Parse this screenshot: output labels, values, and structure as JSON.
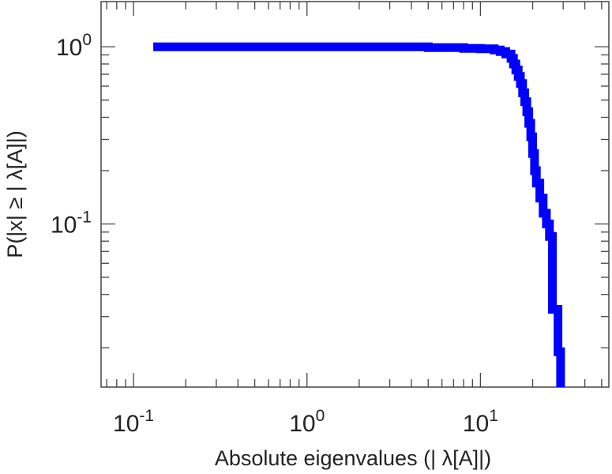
{
  "chart_data": {
    "type": "line",
    "title": "",
    "xlabel": "Absolute eigenvalues (|     λ[A]|)",
    "ylabel": "P(|x|  ≥ | λ[A]|)",
    "xscale": "log",
    "yscale": "log",
    "xlim": [
      0.065,
      55
    ],
    "ylim": [
      0.012,
      1.8
    ],
    "grid": false,
    "legend": "none",
    "x_ticks": [
      {
        "base": "10",
        "exp": "-1",
        "value": 0.1
      },
      {
        "base": "10",
        "exp": "0",
        "value": 1
      },
      {
        "base": "10",
        "exp": "1",
        "value": 10
      }
    ],
    "y_ticks": [
      {
        "base": "10",
        "exp": "-1",
        "value": 0.1
      },
      {
        "base": "10",
        "exp": "0",
        "value": 1
      }
    ],
    "series": [
      {
        "color": "#0000ff",
        "x": [
          0.13,
          0.5,
          1,
          2,
          5,
          8,
          10,
          12,
          13,
          14,
          15,
          15.5,
          16,
          16.5,
          17,
          17.5,
          18,
          18.5,
          19,
          19.5,
          20,
          20.5,
          21,
          22,
          23,
          24,
          25,
          26,
          27,
          28,
          29
        ],
        "y": [
          1.0,
          1.0,
          1.0,
          1.0,
          0.99,
          0.98,
          0.975,
          0.96,
          0.94,
          0.91,
          0.86,
          0.8,
          0.74,
          0.68,
          0.62,
          0.55,
          0.49,
          0.43,
          0.37,
          0.31,
          0.25,
          0.2,
          0.17,
          0.14,
          0.115,
          0.1,
          0.085,
          0.033,
          0.033,
          0.019,
          0.014
        ]
      }
    ]
  }
}
